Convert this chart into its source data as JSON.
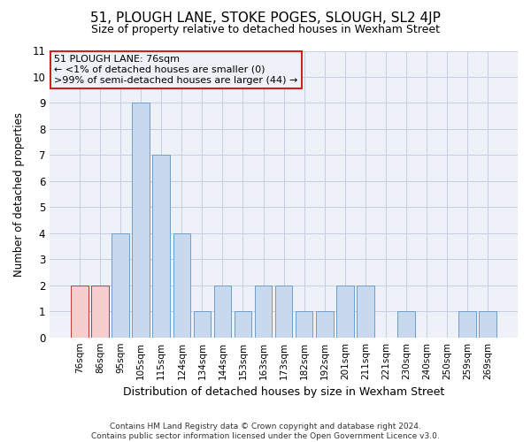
{
  "title": "51, PLOUGH LANE, STOKE POGES, SLOUGH, SL2 4JP",
  "subtitle": "Size of property relative to detached houses in Wexham Street",
  "xlabel": "Distribution of detached houses by size in Wexham Street",
  "ylabel": "Number of detached properties",
  "categories": [
    "76sqm",
    "86sqm",
    "95sqm",
    "105sqm",
    "115sqm",
    "124sqm",
    "134sqm",
    "144sqm",
    "153sqm",
    "163sqm",
    "173sqm",
    "182sqm",
    "192sqm",
    "201sqm",
    "211sqm",
    "221sqm",
    "230sqm",
    "240sqm",
    "250sqm",
    "259sqm",
    "269sqm"
  ],
  "values": [
    2,
    2,
    4,
    9,
    7,
    4,
    1,
    2,
    1,
    2,
    2,
    1,
    1,
    2,
    2,
    0,
    1,
    0,
    0,
    1,
    1
  ],
  "highlight_indices": [
    0,
    1
  ],
  "bar_color_normal": "#c8d8ed",
  "bar_color_highlight": "#f5cece",
  "bar_edge_color": "#6b9ec8",
  "bar_highlight_edge_color": "#c0392b",
  "ylim": [
    0,
    11
  ],
  "yticks": [
    0,
    1,
    2,
    3,
    4,
    5,
    6,
    7,
    8,
    9,
    10,
    11
  ],
  "annotation_box_text": "51 PLOUGH LANE: 76sqm\n← <1% of detached houses are smaller (0)\n>99% of semi-detached houses are larger (44) →",
  "annotation_box_color": "#cc2222",
  "footer_line1": "Contains HM Land Registry data © Crown copyright and database right 2024.",
  "footer_line2": "Contains public sector information licensed under the Open Government Licence v3.0.",
  "background_color": "#ffffff",
  "plot_bg_color": "#eef2f8",
  "grid_color": "#c5cfe0",
  "title_fontsize": 11,
  "subtitle_fontsize": 9
}
